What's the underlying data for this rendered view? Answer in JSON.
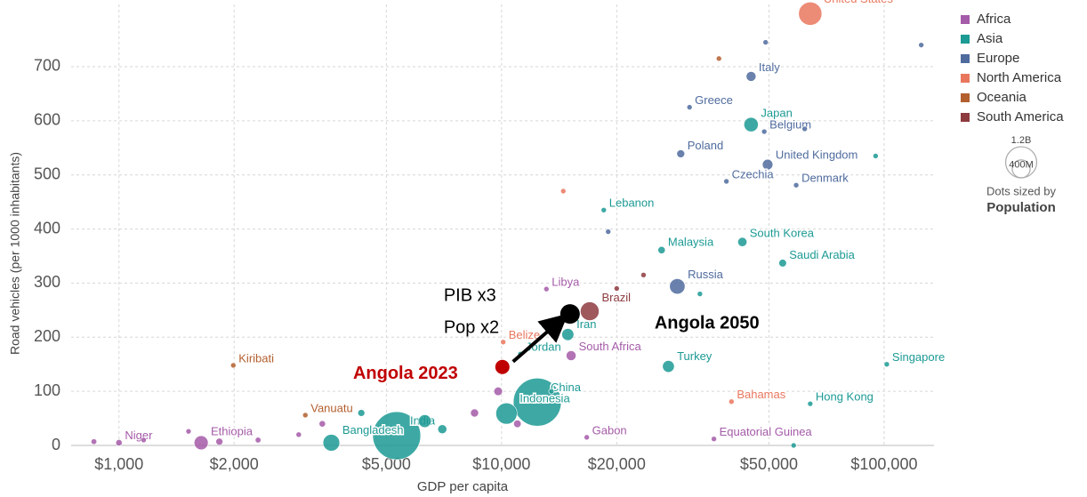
{
  "chart_data": {
    "type": "scatter",
    "x_label": "GDP per capita",
    "y_label": "Road vehicles (per 1000 inhabitants)",
    "x_log": true,
    "grid": true,
    "xlim": [
      750,
      135000
    ],
    "ylim": [
      0,
      815
    ],
    "xticks": [
      {
        "value": 1000,
        "label": "$1,000"
      },
      {
        "value": 2000,
        "label": "$2,000"
      },
      {
        "value": 5000,
        "label": "$5,000"
      },
      {
        "value": 10000,
        "label": "$10,000"
      },
      {
        "value": 20000,
        "label": "$20,000"
      },
      {
        "value": 50000,
        "label": "$50,000"
      },
      {
        "value": 100000,
        "label": "$100,000"
      }
    ],
    "yticks": [
      0,
      100,
      200,
      300,
      400,
      500,
      600,
      700
    ],
    "legend_position": "right",
    "regions": [
      {
        "name": "Africa",
        "color": "#a45ba8"
      },
      {
        "name": "Asia",
        "color": "#1c9a94"
      },
      {
        "name": "Europe",
        "color": "#4f6b9e"
      },
      {
        "name": "North America",
        "color": "#e9775e"
      },
      {
        "name": "Oceania",
        "color": "#b35f2e"
      },
      {
        "name": "South America",
        "color": "#8e3b3f"
      }
    ],
    "size_legend": {
      "title": "Dots sized by",
      "variable": "Population",
      "sizes": [
        {
          "value": 1200,
          "label": "1.2B"
        },
        {
          "value": 400,
          "label": "400M"
        }
      ]
    },
    "points": [
      {
        "label": "United States",
        "x": 64100,
        "y": 798,
        "size": 330,
        "region": 3
      },
      {
        "label": "Italy",
        "x": 44900,
        "y": 682,
        "size": 59,
        "region": 2
      },
      {
        "label": "Greece",
        "x": 31000,
        "y": 625,
        "size": 10,
        "region": 2
      },
      {
        "label": "Japan",
        "x": 44900,
        "y": 593,
        "size": 125,
        "region": 1
      },
      {
        "label": "Belgium",
        "x": 48600,
        "y": 580,
        "size": 12,
        "region": 2
      },
      {
        "label": "Poland",
        "x": 29400,
        "y": 539,
        "size": 38,
        "region": 2
      },
      {
        "label": "United Kingdom",
        "x": 49600,
        "y": 519,
        "size": 67,
        "region": 2
      },
      {
        "label": "Czechia",
        "x": 38700,
        "y": 488,
        "size": 11,
        "region": 2
      },
      {
        "label": "Denmark",
        "x": 58900,
        "y": 481,
        "size": 6,
        "region": 2
      },
      {
        "label": "Lebanon",
        "x": 18500,
        "y": 435,
        "size": 6,
        "region": 1
      },
      {
        "label": "Malaysia",
        "x": 26200,
        "y": 361,
        "size": 33,
        "region": 1
      },
      {
        "label": "South Korea",
        "x": 42600,
        "y": 376,
        "size": 52,
        "region": 1
      },
      {
        "label": "Saudi Arabia",
        "x": 54300,
        "y": 337,
        "size": 36,
        "region": 1
      },
      {
        "label": "Russia",
        "x": 28800,
        "y": 294,
        "size": 145,
        "region": 2
      },
      {
        "label": "Libya",
        "x": 13100,
        "y": 289,
        "size": 7,
        "region": 0
      },
      {
        "label": "Brazil",
        "x": 17000,
        "y": 248,
        "size": 214,
        "region": 5
      },
      {
        "label": "Iran",
        "x": 14900,
        "y": 205,
        "size": 88,
        "region": 1
      },
      {
        "label": "Belize",
        "x": 10100,
        "y": 191,
        "size": 1,
        "region": 3
      },
      {
        "label": "Jordan",
        "x": 11200,
        "y": 169,
        "size": 11,
        "region": 1
      },
      {
        "label": "South Africa",
        "x": 15200,
        "y": 166,
        "size": 60,
        "region": 0
      },
      {
        "label": "Turkey",
        "x": 27300,
        "y": 146,
        "size": 85,
        "region": 1
      },
      {
        "label": "Singapore",
        "x": 101600,
        "y": 150,
        "size": 6,
        "region": 1
      },
      {
        "label": "China",
        "x": 12400,
        "y": 80,
        "size": 1400,
        "region": 1
      },
      {
        "label": "Indonesia",
        "x": 10300,
        "y": 59,
        "size": 275,
        "region": 1
      },
      {
        "label": "India",
        "x": 5320,
        "y": 18,
        "size": 1400,
        "region": 1
      },
      {
        "label": "Bangladesh",
        "x": 3590,
        "y": 5,
        "size": 170,
        "region": 1
      },
      {
        "label": "Vanuatu",
        "x": 3070,
        "y": 56,
        "size": 1,
        "region": 4
      },
      {
        "label": "Kiribati",
        "x": 1990,
        "y": 148,
        "size": 1,
        "region": 4
      },
      {
        "label": "Niger",
        "x": 1000,
        "y": 5,
        "size": 25,
        "region": 0
      },
      {
        "label": "Ethiopia",
        "x": 1640,
        "y": 5,
        "size": 120,
        "region": 0
      },
      {
        "label": "Gabon",
        "x": 16700,
        "y": 15,
        "size": 2,
        "region": 0
      },
      {
        "label": "Bahamas",
        "x": 39900,
        "y": 81,
        "size": 1,
        "region": 3
      },
      {
        "label": "Hong Kong",
        "x": 64100,
        "y": 77,
        "size": 7,
        "region": 1
      },
      {
        "label": "Equatorial Guinea",
        "x": 35900,
        "y": 12,
        "size": 2,
        "region": 0
      },
      {
        "x": 860,
        "y": 7,
        "size": 20,
        "region": 0
      },
      {
        "x": 1160,
        "y": 10,
        "size": 15,
        "region": 0
      },
      {
        "x": 1520,
        "y": 26,
        "size": 12,
        "region": 0
      },
      {
        "x": 1830,
        "y": 7,
        "size": 30,
        "region": 0
      },
      {
        "x": 2310,
        "y": 10,
        "size": 20,
        "region": 0
      },
      {
        "x": 2950,
        "y": 20,
        "size": 18,
        "region": 0
      },
      {
        "x": 3400,
        "y": 40,
        "size": 25,
        "region": 0
      },
      {
        "x": 4300,
        "y": 60,
        "size": 30,
        "region": 1
      },
      {
        "x": 6300,
        "y": 45,
        "size": 100,
        "region": 1
      },
      {
        "x": 7000,
        "y": 30,
        "size": 50,
        "region": 1
      },
      {
        "x": 8500,
        "y": 60,
        "size": 40,
        "region": 0
      },
      {
        "x": 9800,
        "y": 100,
        "size": 45,
        "region": 0
      },
      {
        "x": 11000,
        "y": 40,
        "size": 35,
        "region": 0
      },
      {
        "x": 13500,
        "y": 100,
        "size": 10,
        "region": 1
      },
      {
        "x": 14500,
        "y": 470,
        "size": 3,
        "region": 3
      },
      {
        "x": 19000,
        "y": 395,
        "size": 3,
        "region": 2
      },
      {
        "x": 20000,
        "y": 290,
        "size": 3,
        "region": 5
      },
      {
        "x": 23500,
        "y": 315,
        "size": 10,
        "region": 5
      },
      {
        "x": 33000,
        "y": 280,
        "size": 3,
        "region": 1
      },
      {
        "x": 37000,
        "y": 715,
        "size": 3,
        "region": 4
      },
      {
        "x": 49000,
        "y": 745,
        "size": 3,
        "region": 2
      },
      {
        "x": 62000,
        "y": 585,
        "size": 5,
        "region": 2
      },
      {
        "x": 95000,
        "y": 535,
        "size": 3,
        "region": 1
      },
      {
        "x": 125000,
        "y": 740,
        "size": 3,
        "region": 2
      },
      {
        "x": 58000,
        "y": 0,
        "size": 3,
        "region": 1
      }
    ],
    "annotations": [
      {
        "text": "Angola 2023",
        "x": 10050,
        "y": 145,
        "color": "#c00000"
      },
      {
        "text": "Angola 2050",
        "x": 15100,
        "y": 243,
        "color": "#000000"
      }
    ],
    "notes": [
      "PIB x3",
      "Pop x2"
    ]
  }
}
